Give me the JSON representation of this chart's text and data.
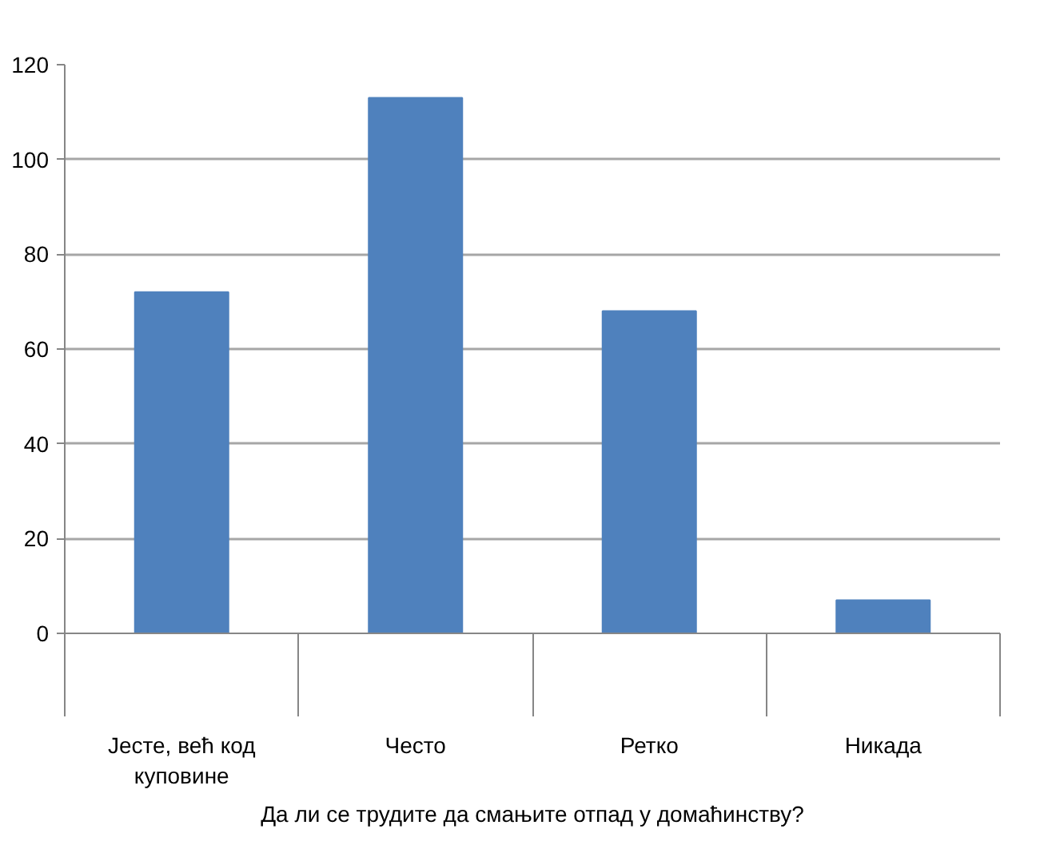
{
  "chart_data": {
    "type": "bar",
    "xlabel": "Да ли се трудите да смањите отпад у домаћинству?",
    "categories": [
      "Јесте, већ код куповине",
      "Често",
      "Ретко",
      "Никада"
    ],
    "values": [
      72,
      113,
      68,
      7
    ],
    "color": "#4f81bd",
    "ylim": [
      0,
      120
    ],
    "yticks": [
      0,
      20,
      40,
      60,
      80,
      100,
      120
    ],
    "grid": "y"
  }
}
